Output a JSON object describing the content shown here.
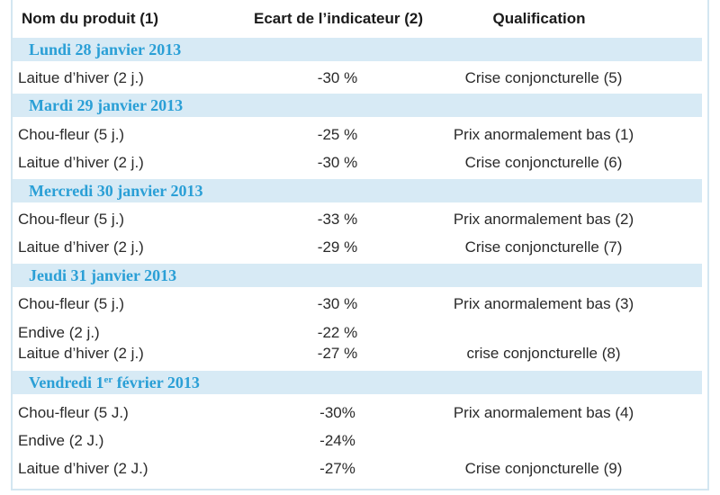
{
  "header": {
    "product": "Nom du produit (1)",
    "gap": "Ecart de l’indicateur (2)",
    "qualification": "Qualification"
  },
  "days": [
    {
      "date": "Lundi 28 janvier 2013",
      "rows": [
        {
          "product": "Laitue d’hiver (2 j.)",
          "gap": "-30 %",
          "qualification": "Crise conjoncturelle (5)"
        }
      ]
    },
    {
      "date": "Mardi 29 janvier 2013",
      "rows": [
        {
          "product": "Chou-fleur (5 j.)",
          "gap": "-25 %",
          "qualification": "Prix anormalement bas (1)"
        },
        {
          "product": "Laitue d’hiver (2 j.)",
          "gap": "-30 %",
          "qualification": "Crise conjoncturelle (6)"
        }
      ]
    },
    {
      "date": "Mercredi 30 janvier 2013",
      "rows": [
        {
          "product": "Chou-fleur (5 j.)",
          "gap": "-33 %",
          "qualification": "Prix anormalement bas (2)"
        },
        {
          "product": "Laitue d’hiver (2 j.)",
          "gap": "-29 %",
          "qualification": "Crise conjoncturelle (7)"
        }
      ]
    },
    {
      "date": "Jeudi 31 janvier 2013",
      "rows": [
        {
          "product": "Chou-fleur (5 j.)",
          "gap": "-30 %",
          "qualification": "Prix anormalement bas (3)"
        },
        {
          "product": "Endive (2 j.)",
          "gap": "-22 %",
          "qualification": ""
        },
        {
          "product": "Laitue d’hiver (2 j.)",
          "gap": "-27 %",
          "qualification": "crise conjoncturelle (8)"
        }
      ]
    },
    {
      "date_prefix": "Vendredi 1",
      "date_sup": "er",
      "date_suffix": " février 2013",
      "rows": [
        {
          "product": "Chou-fleur (5 J.)",
          "gap": "-30%",
          "qualification": "Prix anormalement bas (4)"
        },
        {
          "product": "Endive (2 J.)",
          "gap": "-24%",
          "qualification": ""
        },
        {
          "product": "Laitue d’hiver (2 J.)",
          "gap": "-27%",
          "qualification": "Crise conjoncturelle (9)"
        }
      ]
    }
  ]
}
